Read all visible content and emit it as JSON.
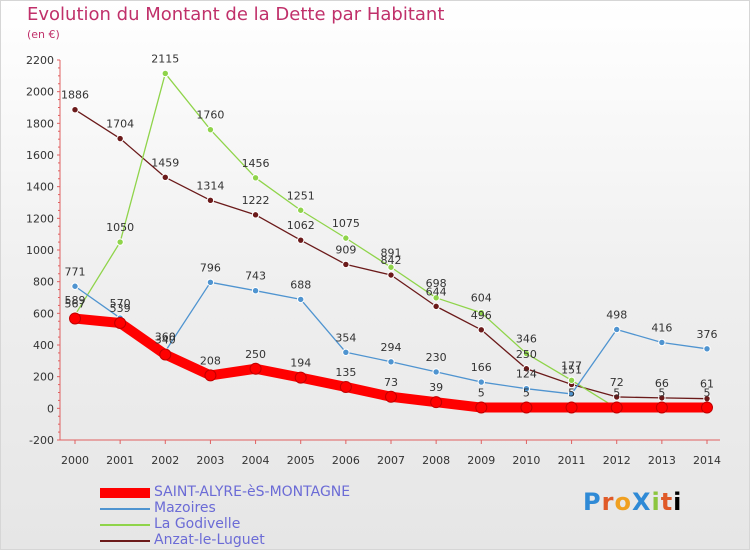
{
  "title": "Evolution du Montant de la Dette par Habitant",
  "subtitle": "(en €)",
  "brand_logo": "ProXiti",
  "chart_data": {
    "type": "line",
    "x": [
      "2000",
      "2001",
      "2002",
      "2003",
      "2004",
      "2005",
      "2006",
      "2007",
      "2008",
      "2009",
      "2010",
      "2011",
      "2012",
      "2013",
      "2014"
    ],
    "ylim": [
      -200,
      2200
    ],
    "yticks": [
      -200,
      0,
      200,
      400,
      600,
      800,
      1000,
      1200,
      1400,
      1600,
      1800,
      2000,
      2200
    ],
    "grid": false,
    "legend_position": "bottom-left",
    "series": [
      {
        "name": "SAINT-ALYRE-èS-MONTAGNE",
        "color": "#ff0000",
        "values": [
          567,
          539,
          340,
          208,
          250,
          194,
          135,
          73,
          39,
          5,
          5,
          5,
          5,
          5,
          5
        ],
        "labels": [
          "567",
          "539",
          "340",
          "208",
          "250",
          "194",
          "135",
          "73",
          "39",
          "5",
          "5",
          "5",
          "5",
          "5",
          "5"
        ]
      },
      {
        "name": "Mazoires",
        "color": "#4f94d0",
        "values": [
          771,
          570,
          360,
          796,
          743,
          688,
          354,
          294,
          230,
          166,
          124,
          91,
          498,
          416,
          376
        ],
        "labels": [
          "771",
          "570",
          "360",
          "796",
          "743",
          "688",
          "354",
          "294",
          "230",
          "166",
          "124",
          "",
          "498",
          "416",
          "376"
        ]
      },
      {
        "name": "La Godivelle",
        "color": "#8fd44a",
        "values": [
          589,
          1050,
          2115,
          1760,
          1456,
          1251,
          1075,
          891,
          698,
          604,
          346,
          177,
          0,
          0,
          0
        ],
        "labels": [
          "589",
          "1050",
          "2115",
          "1760",
          "1456",
          "1251",
          "1075",
          "891",
          "698",
          "604",
          "346",
          "177",
          "",
          "",
          ""
        ]
      },
      {
        "name": "Anzat-le-Luguet",
        "color": "#6b1a1a",
        "values": [
          1886,
          1704,
          1459,
          1314,
          1222,
          1062,
          909,
          842,
          644,
          496,
          250,
          151,
          72,
          66,
          61
        ],
        "labels": [
          "1886",
          "1704",
          "1459",
          "1314",
          "1222",
          "1062",
          "909",
          "842",
          "644",
          "496",
          "250",
          "151",
          "72",
          "66",
          "61"
        ]
      }
    ]
  }
}
